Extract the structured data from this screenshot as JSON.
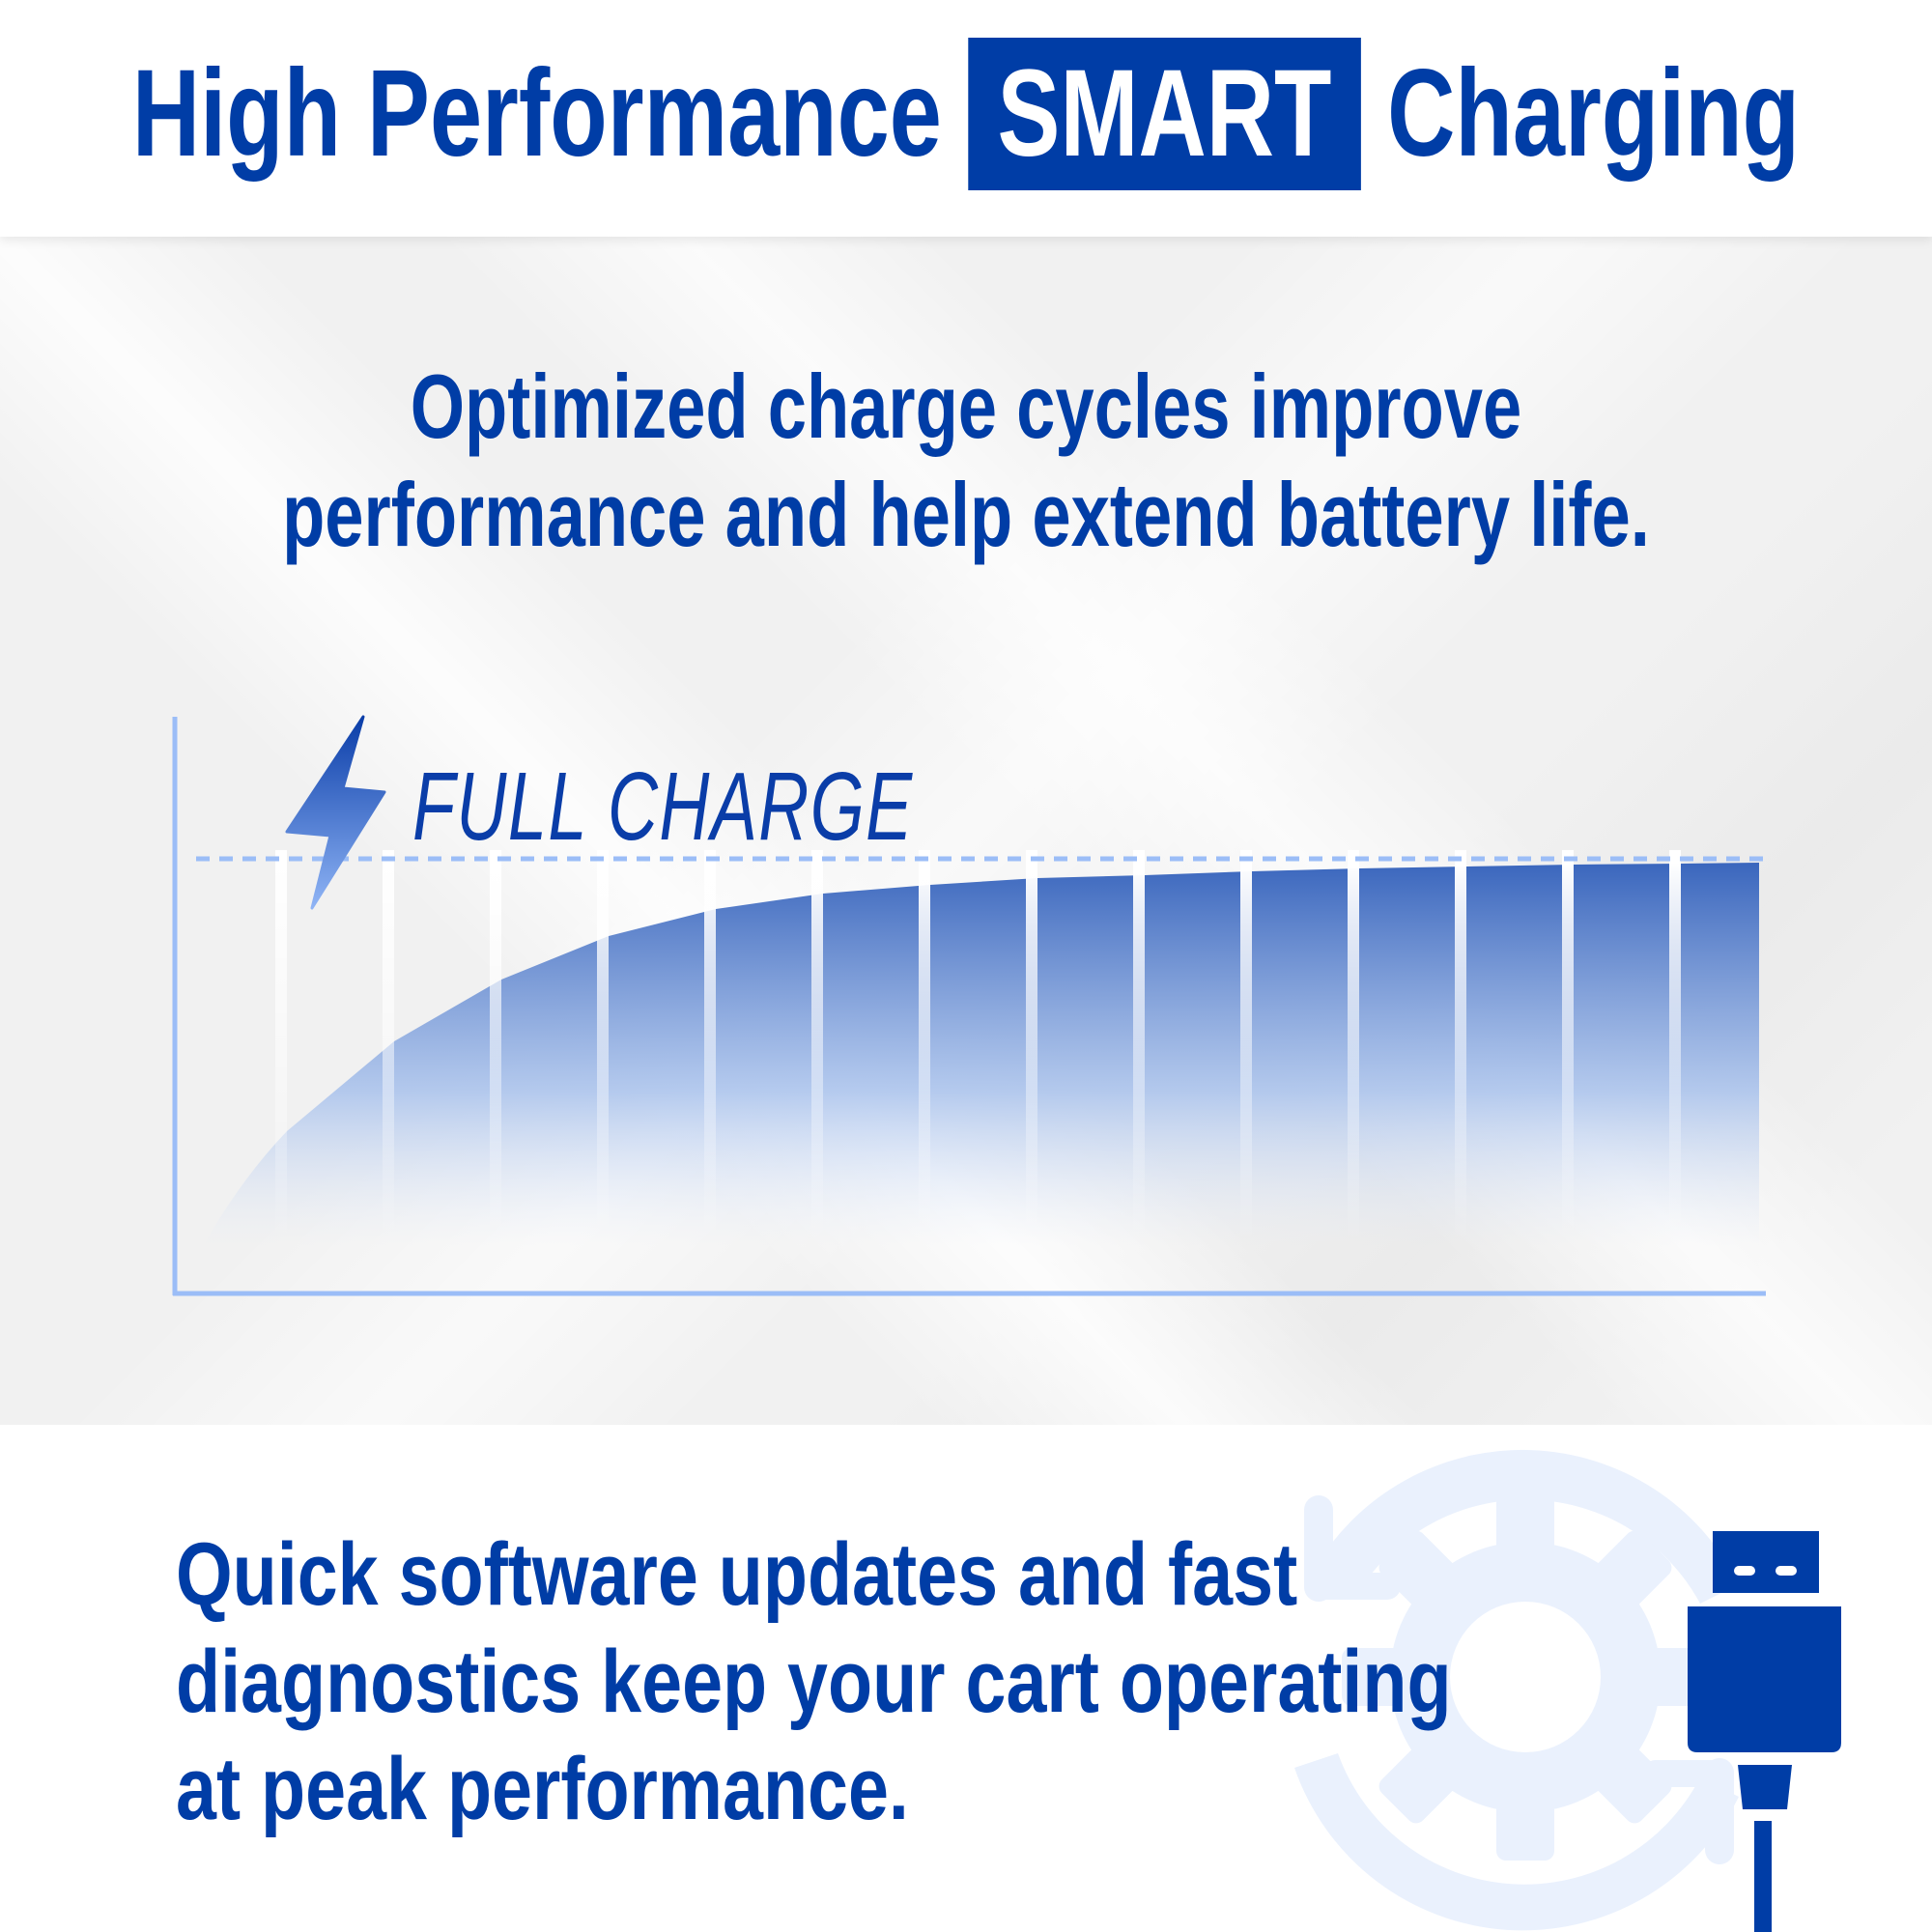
{
  "header": {
    "title_before": "High Performance",
    "title_highlight": "SMART",
    "title_after": "Charging"
  },
  "main": {
    "subtitle_line1": "Optimized charge cycles improve",
    "subtitle_line2": "performance and help extend battery life.",
    "chart_label": "FULL CHARGE",
    "chart_icon": "lightning-bolt-icon"
  },
  "footer": {
    "line1": "Quick software updates and fast",
    "line2": "diagnostics keep your cart operating",
    "line3": "at peak performance.",
    "icons": [
      "gear-refresh-icon",
      "usb-plug-icon"
    ]
  },
  "colors": {
    "brand_blue": "#003da6",
    "light_blue": "#9bbdf7",
    "icon_tint": "#eaf1fd"
  }
}
